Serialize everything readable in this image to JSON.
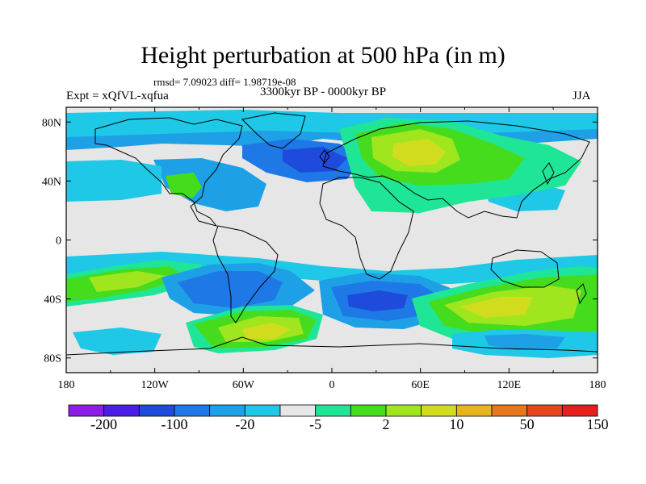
{
  "title": "Height perturbation at 500 hPa (in m)",
  "stats": "rmsd= 7.09023 diff= 1.98719e-08",
  "experiment": "Expt = xQfVL-xqfua",
  "period": "3300kyr BP - 0000kyr BP",
  "season": "JJA",
  "axes": {
    "x_ticks": [
      "180",
      "120W",
      "60W",
      "0",
      "60E",
      "120E",
      "180"
    ],
    "y_ticks": [
      "80N",
      "40N",
      "0",
      "40S",
      "80S"
    ]
  },
  "colorbar": {
    "colors": [
      "#8c1ee8",
      "#4b1ee8",
      "#1e4bdc",
      "#1e78e6",
      "#1ea0e6",
      "#1ec8e6",
      "#e6e6e6",
      "#1ee696",
      "#46dc1e",
      "#a0e61e",
      "#d2dc1e",
      "#e6b41e",
      "#e6781e",
      "#e6461e",
      "#e61e1e"
    ],
    "labels": [
      "-200",
      "-100",
      "-20",
      "-5",
      "2",
      "10",
      "50",
      "150"
    ]
  }
}
